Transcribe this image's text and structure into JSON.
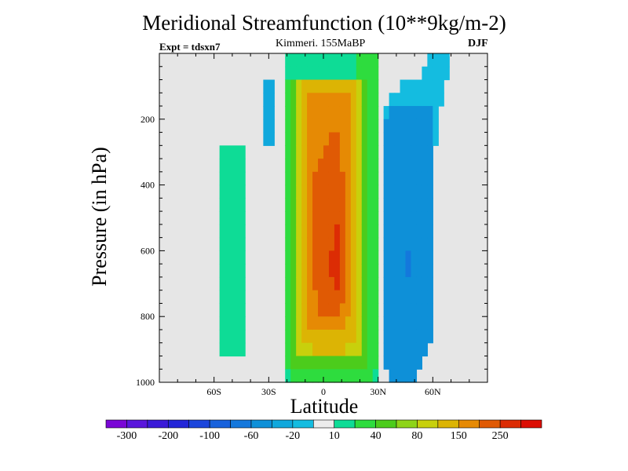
{
  "chart_data": {
    "type": "heatmap",
    "title": "Meridional Streamfunction (10**9kg/m-2)",
    "subtitle": "Kimmeri. 155MaBP",
    "experiment": "Expt = tdsxn7",
    "season": "DJF",
    "xlabel": "Latitude",
    "ylabel": "Pressure (in hPa)",
    "xlim": [
      -90,
      90
    ],
    "ylim": [
      1000,
      0
    ],
    "x_ticks": [
      {
        "value": -60,
        "label": "60S"
      },
      {
        "value": -30,
        "label": "30S"
      },
      {
        "value": 0,
        "label": "0"
      },
      {
        "value": 30,
        "label": "30N"
      },
      {
        "value": 60,
        "label": "60N"
      }
    ],
    "y_ticks": [
      {
        "value": 200,
        "label": "200"
      },
      {
        "value": 400,
        "label": "400"
      },
      {
        "value": 600,
        "label": "600"
      },
      {
        "value": 800,
        "label": "800"
      },
      {
        "value": 1000,
        "label": "1000"
      }
    ],
    "background_color": "#e6e6e6",
    "colorbar": {
      "colors": [
        "#7a06d6",
        "#5a16dc",
        "#3a1ad8",
        "#2326d8",
        "#1c46dc",
        "#1862dc",
        "#1478dc",
        "#0e90d8",
        "#10a8dc",
        "#14bce0",
        "#ececec",
        "#0edc96",
        "#2edc3e",
        "#4ccc1c",
        "#8ed418",
        "#c8d00c",
        "#dcb404",
        "#e68a04",
        "#e05a04",
        "#dc2c04",
        "#dc0e04"
      ],
      "labels": [
        "-300",
        "-200",
        "-100",
        "-60",
        "-20",
        "10",
        "40",
        "80",
        "150",
        "250"
      ]
    },
    "cells": [
      {
        "lat_start": -57,
        "lat_end": -43,
        "values": [
          0,
          0,
          0,
          0,
          0,
          0,
          0,
          12,
          12,
          12,
          12,
          12,
          12,
          12,
          12,
          12,
          12,
          12,
          12,
          12,
          12,
          12,
          12,
          0,
          0
        ]
      },
      {
        "lat_start": -33,
        "lat_end": -27,
        "values": [
          0,
          0,
          -20,
          -20,
          -20,
          -20,
          -20,
          0,
          0,
          0,
          0,
          0,
          0,
          0,
          0,
          0,
          0,
          0,
          0,
          0,
          0,
          0,
          0,
          0,
          0
        ]
      },
      {
        "lat_start": -21,
        "lat_end": -18,
        "values": [
          12,
          12,
          25,
          25,
          25,
          25,
          25,
          25,
          25,
          25,
          25,
          25,
          25,
          25,
          25,
          25,
          25,
          25,
          25,
          25,
          25,
          25,
          25,
          25,
          12
        ]
      },
      {
        "lat_start": -18,
        "lat_end": -15,
        "values": [
          12,
          12,
          50,
          50,
          50,
          50,
          50,
          50,
          50,
          50,
          50,
          50,
          50,
          50,
          50,
          50,
          50,
          50,
          50,
          50,
          50,
          50,
          50,
          50,
          25
        ]
      },
      {
        "lat_start": -15,
        "lat_end": -12,
        "values": [
          12,
          12,
          80,
          80,
          80,
          80,
          80,
          80,
          80,
          80,
          80,
          80,
          80,
          80,
          80,
          80,
          80,
          80,
          80,
          80,
          80,
          80,
          80,
          50,
          25
        ]
      },
      {
        "lat_start": -12,
        "lat_end": -9,
        "values": [
          12,
          12,
          100,
          130,
          130,
          130,
          130,
          130,
          130,
          130,
          130,
          130,
          130,
          130,
          130,
          130,
          130,
          130,
          130,
          130,
          130,
          100,
          80,
          50,
          25
        ]
      },
      {
        "lat_start": -9,
        "lat_end": -6,
        "values": [
          12,
          12,
          100,
          180,
          180,
          180,
          180,
          180,
          180,
          180,
          180,
          180,
          180,
          180,
          180,
          180,
          180,
          180,
          180,
          180,
          180,
          130,
          80,
          50,
          25
        ]
      },
      {
        "lat_start": -6,
        "lat_end": -3,
        "values": [
          12,
          12,
          100,
          180,
          180,
          180,
          180,
          180,
          180,
          220,
          220,
          220,
          220,
          220,
          220,
          220,
          220,
          220,
          180,
          180,
          180,
          130,
          100,
          50,
          25
        ]
      },
      {
        "lat_start": -3,
        "lat_end": 0,
        "values": [
          12,
          12,
          100,
          180,
          180,
          180,
          180,
          180,
          220,
          220,
          220,
          220,
          220,
          220,
          220,
          220,
          220,
          220,
          220,
          220,
          180,
          130,
          100,
          50,
          25
        ]
      },
      {
        "lat_start": 0,
        "lat_end": 3,
        "values": [
          12,
          12,
          100,
          180,
          180,
          180,
          180,
          220,
          220,
          220,
          220,
          220,
          220,
          220,
          220,
          220,
          220,
          220,
          220,
          220,
          180,
          130,
          100,
          50,
          25
        ]
      },
      {
        "lat_start": 3,
        "lat_end": 6,
        "values": [
          12,
          12,
          100,
          180,
          180,
          180,
          220,
          220,
          220,
          220,
          220,
          220,
          220,
          220,
          220,
          270,
          270,
          220,
          220,
          220,
          180,
          130,
          100,
          50,
          25
        ]
      },
      {
        "lat_start": 6,
        "lat_end": 9,
        "values": [
          12,
          12,
          100,
          180,
          180,
          180,
          220,
          220,
          220,
          220,
          220,
          220,
          220,
          270,
          270,
          270,
          270,
          270,
          220,
          220,
          180,
          130,
          100,
          50,
          25
        ]
      },
      {
        "lat_start": 9,
        "lat_end": 12,
        "values": [
          12,
          12,
          100,
          180,
          180,
          180,
          180,
          180,
          180,
          220,
          220,
          220,
          220,
          220,
          220,
          220,
          220,
          220,
          220,
          180,
          180,
          130,
          100,
          50,
          25
        ]
      },
      {
        "lat_start": 12,
        "lat_end": 15,
        "values": [
          12,
          12,
          100,
          180,
          180,
          180,
          180,
          180,
          180,
          180,
          180,
          180,
          180,
          180,
          180,
          180,
          180,
          180,
          180,
          180,
          130,
          130,
          80,
          50,
          25
        ]
      },
      {
        "lat_start": 15,
        "lat_end": 18,
        "values": [
          12,
          12,
          100,
          130,
          130,
          130,
          130,
          130,
          130,
          130,
          130,
          130,
          130,
          130,
          130,
          130,
          130,
          130,
          130,
          130,
          130,
          100,
          80,
          50,
          25
        ]
      },
      {
        "lat_start": 18,
        "lat_end": 21,
        "values": [
          25,
          25,
          80,
          80,
          80,
          80,
          80,
          80,
          80,
          80,
          80,
          80,
          80,
          80,
          80,
          80,
          80,
          80,
          80,
          80,
          80,
          80,
          80,
          50,
          25
        ]
      },
      {
        "lat_start": 21,
        "lat_end": 24,
        "values": [
          25,
          25,
          50,
          50,
          50,
          50,
          50,
          50,
          50,
          50,
          50,
          50,
          50,
          50,
          50,
          50,
          50,
          50,
          50,
          50,
          50,
          50,
          50,
          50,
          25
        ]
      },
      {
        "lat_start": 24,
        "lat_end": 27,
        "values": [
          25,
          25,
          25,
          25,
          25,
          25,
          25,
          25,
          25,
          25,
          25,
          25,
          25,
          25,
          25,
          25,
          25,
          25,
          25,
          25,
          25,
          25,
          25,
          25,
          25
        ]
      },
      {
        "lat_start": 27,
        "lat_end": 30,
        "values": [
          25,
          25,
          25,
          25,
          25,
          25,
          25,
          25,
          25,
          25,
          25,
          25,
          25,
          25,
          25,
          25,
          25,
          25,
          25,
          25,
          25,
          25,
          25,
          25,
          12
        ]
      },
      {
        "lat_start": 30,
        "lat_end": 33,
        "values": [
          0,
          0,
          0,
          0,
          0,
          0,
          0,
          0,
          0,
          0,
          0,
          0,
          0,
          0,
          0,
          0,
          0,
          0,
          0,
          0,
          0,
          0,
          0,
          0,
          0
        ]
      },
      {
        "lat_start": 33,
        "lat_end": 36,
        "values": [
          0,
          0,
          0,
          0,
          -10,
          -30,
          -30,
          -30,
          -30,
          -30,
          -30,
          -30,
          -30,
          -30,
          -30,
          -30,
          -30,
          -30,
          -30,
          -30,
          -30,
          -30,
          -30,
          -30,
          0
        ]
      },
      {
        "lat_start": 36,
        "lat_end": 39,
        "values": [
          0,
          0,
          0,
          -10,
          -30,
          -30,
          -30,
          -30,
          -30,
          -30,
          -30,
          -30,
          -30,
          -30,
          -30,
          -30,
          -30,
          -30,
          -30,
          -30,
          -30,
          -30,
          -30,
          -30,
          -30
        ]
      },
      {
        "lat_start": 39,
        "lat_end": 42,
        "values": [
          0,
          0,
          0,
          -10,
          -30,
          -30,
          -30,
          -30,
          -30,
          -30,
          -30,
          -30,
          -30,
          -30,
          -30,
          -30,
          -30,
          -30,
          -30,
          -30,
          -30,
          -30,
          -30,
          -30,
          -30
        ]
      },
      {
        "lat_start": 42,
        "lat_end": 45,
        "values": [
          0,
          0,
          -10,
          -10,
          -30,
          -30,
          -30,
          -30,
          -30,
          -30,
          -30,
          -30,
          -30,
          -30,
          -30,
          -30,
          -30,
          -30,
          -30,
          -30,
          -30,
          -30,
          -30,
          -30,
          -30
        ]
      },
      {
        "lat_start": 45,
        "lat_end": 48,
        "values": [
          0,
          0,
          -10,
          -10,
          -30,
          -30,
          -30,
          -30,
          -30,
          -30,
          -30,
          -30,
          -30,
          -30,
          -30,
          -50,
          -50,
          -30,
          -30,
          -30,
          -30,
          -30,
          -30,
          -30,
          -30
        ]
      },
      {
        "lat_start": 48,
        "lat_end": 51,
        "values": [
          0,
          0,
          -10,
          -10,
          -30,
          -30,
          -30,
          -30,
          -30,
          -30,
          -30,
          -30,
          -30,
          -30,
          -30,
          -30,
          -30,
          -30,
          -30,
          -30,
          -30,
          -30,
          -30,
          -30,
          -30
        ]
      },
      {
        "lat_start": 51,
        "lat_end": 54,
        "values": [
          0,
          0,
          -10,
          -10,
          -30,
          -30,
          -30,
          -30,
          -30,
          -30,
          -30,
          -30,
          -30,
          -30,
          -30,
          -30,
          -30,
          -30,
          -30,
          -30,
          -30,
          -30,
          -30,
          -30,
          0
        ]
      },
      {
        "lat_start": 54,
        "lat_end": 57,
        "values": [
          0,
          -10,
          -10,
          -10,
          -30,
          -30,
          -30,
          -30,
          -30,
          -30,
          -30,
          -30,
          -30,
          -30,
          -30,
          -30,
          -30,
          -30,
          -30,
          -30,
          -30,
          -30,
          -30,
          0,
          0
        ]
      },
      {
        "lat_start": 57,
        "lat_end": 60,
        "values": [
          -10,
          -10,
          -10,
          -10,
          -30,
          -30,
          -30,
          -30,
          -30,
          -30,
          -30,
          -30,
          -30,
          -30,
          -30,
          -30,
          -30,
          -30,
          -30,
          -30,
          -30,
          -30,
          0,
          0,
          0
        ]
      },
      {
        "lat_start": 60,
        "lat_end": 63,
        "values": [
          -10,
          -10,
          -10,
          -10,
          -10,
          -10,
          -10,
          0,
          0,
          0,
          0,
          0,
          0,
          0,
          0,
          0,
          0,
          0,
          0,
          0,
          0,
          0,
          0,
          0,
          0
        ]
      },
      {
        "lat_start": 63,
        "lat_end": 66,
        "values": [
          -10,
          -10,
          -10,
          -10,
          0,
          0,
          0,
          0,
          0,
          0,
          0,
          0,
          0,
          0,
          0,
          0,
          0,
          0,
          0,
          0,
          0,
          0,
          0,
          0,
          0
        ]
      },
      {
        "lat_start": 66,
        "lat_end": 69,
        "values": [
          -10,
          -10,
          0,
          0,
          0,
          0,
          0,
          0,
          0,
          0,
          0,
          0,
          0,
          0,
          0,
          0,
          0,
          0,
          0,
          0,
          0,
          0,
          0,
          0,
          0
        ]
      }
    ]
  }
}
